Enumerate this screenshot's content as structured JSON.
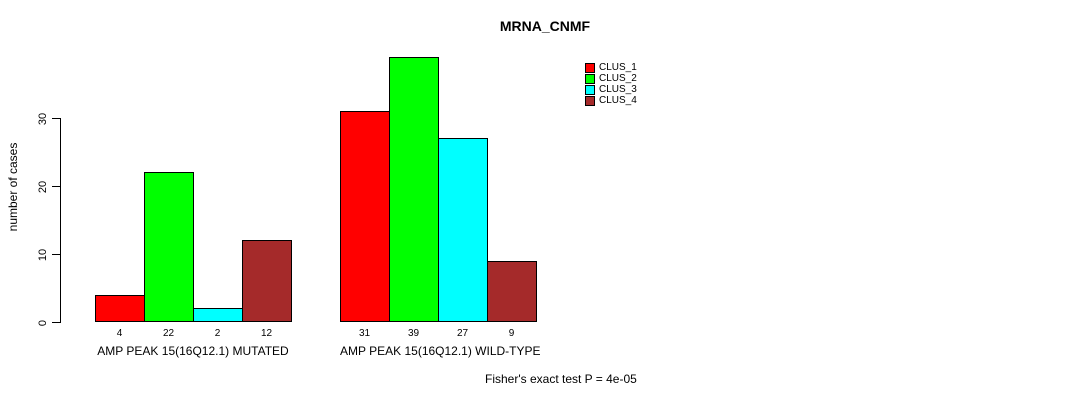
{
  "chart_data": {
    "type": "bar",
    "title": "MRNA_CNMF",
    "ylabel": "number of cases",
    "xlabel": "",
    "ylim": [
      0,
      39
    ],
    "yticks": [
      0,
      10,
      20,
      30
    ],
    "grid": false,
    "legend_position": "top-right",
    "series": [
      "CLUS_1",
      "CLUS_2",
      "CLUS_3",
      "CLUS_4"
    ],
    "colors": [
      "#FF0000",
      "#00FF00",
      "#00FFFF",
      "#A52A2A"
    ],
    "groups": [
      {
        "label": "AMP PEAK 15(16Q12.1) MUTATED",
        "values": [
          4,
          22,
          2,
          12
        ]
      },
      {
        "label": "AMP PEAK 15(16Q12.1) WILD-TYPE",
        "values": [
          31,
          39,
          27,
          9
        ]
      }
    ],
    "annotation": "Fisher's exact test P = 4e-05"
  }
}
